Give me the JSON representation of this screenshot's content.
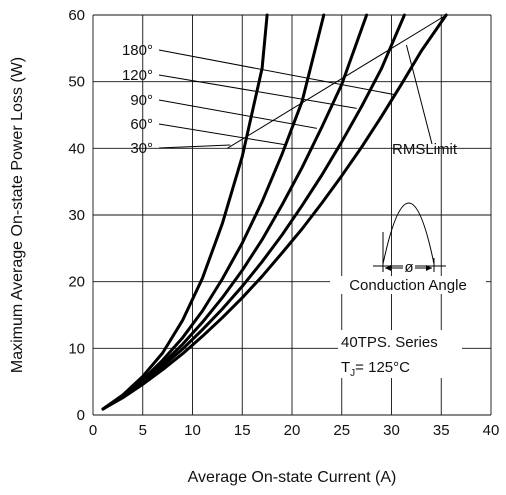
{
  "chart_data": {
    "type": "line",
    "title": "",
    "xlabel": "Average On-state Current (A)",
    "ylabel": "Maximum Average On-state Power Loss (W)",
    "xlim": [
      0,
      40
    ],
    "ylim": [
      0,
      60
    ],
    "x_ticks": [
      "0",
      "5",
      "10",
      "15",
      "20",
      "25",
      "30",
      "35",
      "40"
    ],
    "y_ticks": [
      "0",
      "10",
      "20",
      "30",
      "40",
      "50",
      "60"
    ],
    "grid": true,
    "series": [
      {
        "name": "30°",
        "points": [
          [
            1,
            0.9
          ],
          [
            3,
            3
          ],
          [
            5,
            5.8
          ],
          [
            7,
            9.3
          ],
          [
            9,
            14.2
          ],
          [
            11,
            20.5
          ],
          [
            13,
            28.7
          ],
          [
            15,
            38.8
          ],
          [
            17,
            52
          ],
          [
            17.5,
            60
          ]
        ]
      },
      {
        "name": "60°",
        "points": [
          [
            1,
            0.9
          ],
          [
            3,
            2.9
          ],
          [
            5,
            5.3
          ],
          [
            7,
            8.2
          ],
          [
            9,
            11.6
          ],
          [
            11,
            15.6
          ],
          [
            13,
            20.4
          ],
          [
            15,
            25.8
          ],
          [
            17,
            32
          ],
          [
            19,
            39.1
          ],
          [
            21,
            47
          ],
          [
            23.2,
            60
          ]
        ]
      },
      {
        "name": "90°",
        "points": [
          [
            1,
            0.9
          ],
          [
            3,
            2.8
          ],
          [
            5,
            5.1
          ],
          [
            7,
            7.7
          ],
          [
            9,
            10.6
          ],
          [
            11,
            13.9
          ],
          [
            13,
            17.6
          ],
          [
            15,
            21.7
          ],
          [
            17,
            26.3
          ],
          [
            19,
            31.5
          ],
          [
            21,
            37.1
          ],
          [
            23,
            43.2
          ],
          [
            25,
            49.6
          ],
          [
            27.5,
            60
          ]
        ]
      },
      {
        "name": "120°",
        "points": [
          [
            1,
            0.9
          ],
          [
            3,
            2.7
          ],
          [
            5,
            4.9
          ],
          [
            7,
            7.3
          ],
          [
            9,
            9.9
          ],
          [
            11,
            12.8
          ],
          [
            13,
            15.9
          ],
          [
            15,
            19.3
          ],
          [
            17,
            23
          ],
          [
            19,
            27
          ],
          [
            21,
            31.4
          ],
          [
            23,
            36
          ],
          [
            25,
            41
          ],
          [
            27,
            46.3
          ],
          [
            29,
            52
          ],
          [
            31.3,
            60
          ]
        ]
      },
      {
        "name": "180°",
        "points": [
          [
            1,
            0.9
          ],
          [
            3,
            2.6
          ],
          [
            5,
            4.6
          ],
          [
            7,
            6.8
          ],
          [
            9,
            9.2
          ],
          [
            11,
            11.8
          ],
          [
            13,
            14.6
          ],
          [
            15,
            17.6
          ],
          [
            17,
            20.8
          ],
          [
            19,
            24.3
          ],
          [
            21,
            27.9
          ],
          [
            23,
            31.8
          ],
          [
            25,
            35.9
          ],
          [
            27,
            40.2
          ],
          [
            29,
            44.8
          ],
          [
            31,
            49.6
          ],
          [
            33,
            54.6
          ],
          [
            35.5,
            60
          ]
        ]
      }
    ],
    "rms_limit": {
      "name": "RMS Limit",
      "points": [
        [
          13.5,
          40
        ],
        [
          35.5,
          60
        ]
      ]
    },
    "annotations": {
      "rms_label": "RMSLimit",
      "conduction_label": "Conduction Angle",
      "phi": "ø",
      "series_name": "40TPS. Series",
      "tj_prefix": "T",
      "tj_sub": "J",
      "tj_suffix": "= 125°C"
    }
  }
}
